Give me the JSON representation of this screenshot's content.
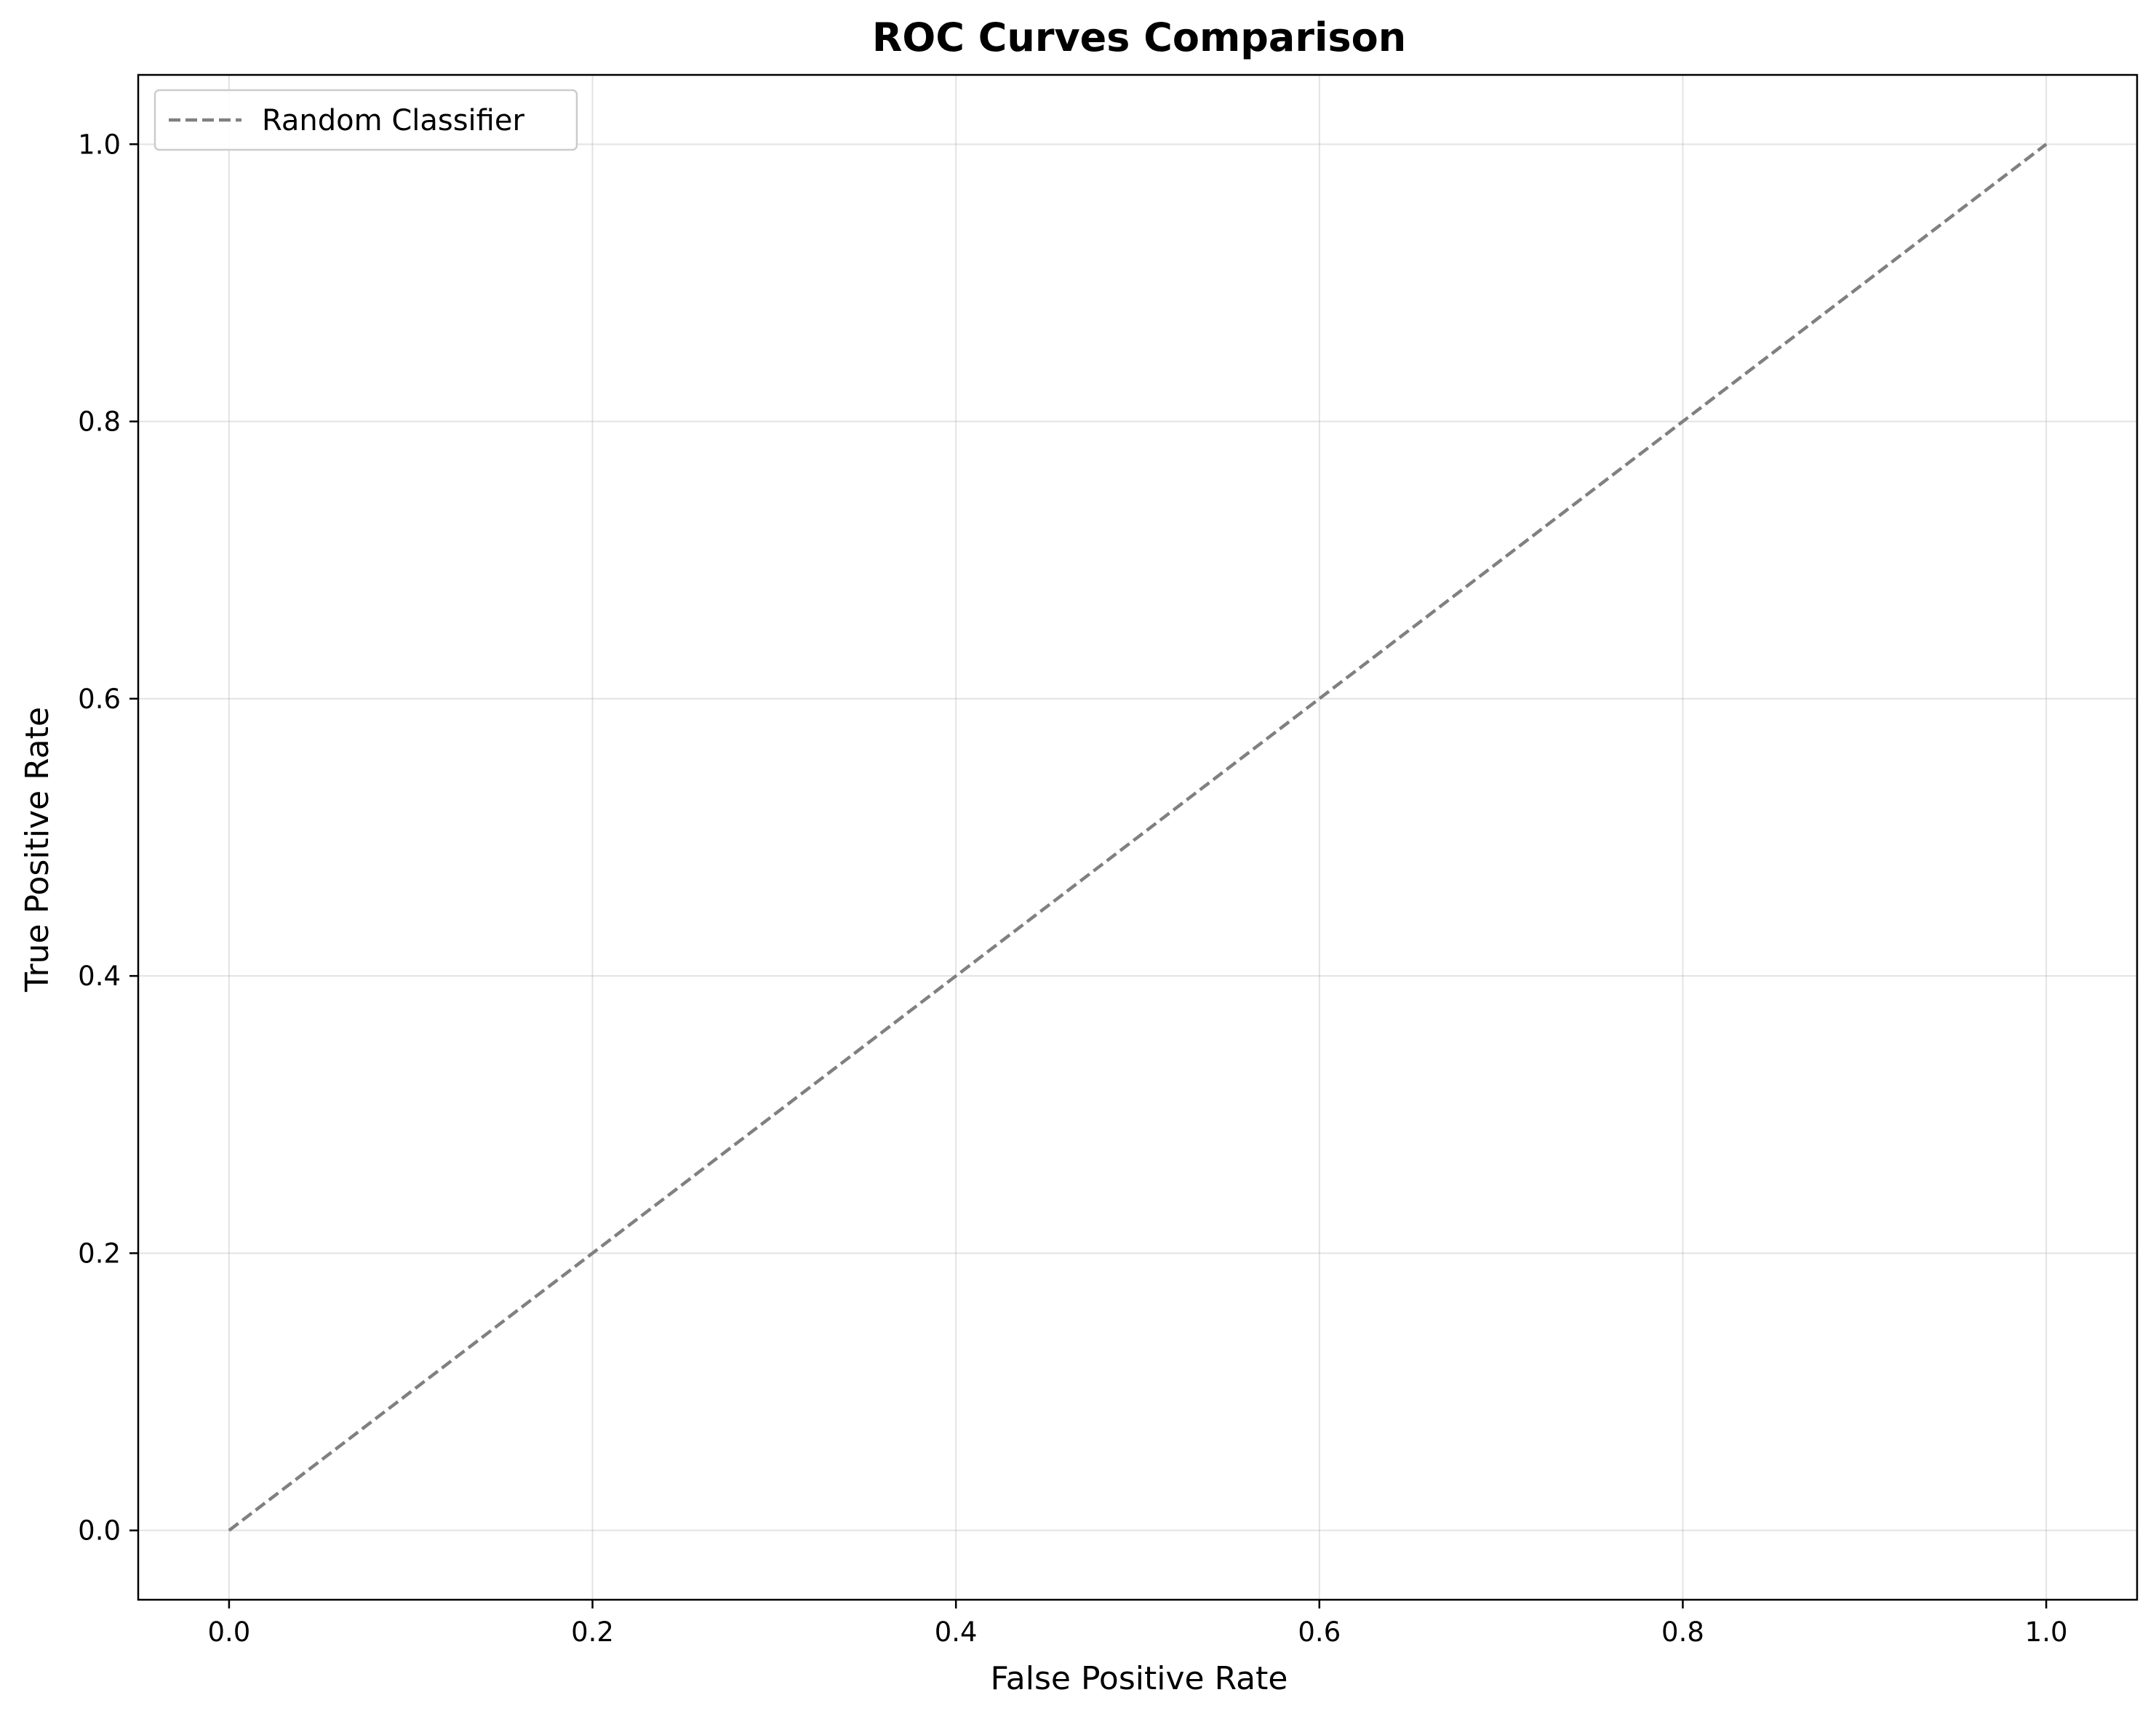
{
  "chart_data": {
    "type": "line",
    "title": "ROC Curves Comparison",
    "xlabel": "False Positive Rate",
    "ylabel": "True Positive Rate",
    "xlim": [
      -0.05,
      1.05
    ],
    "ylim": [
      -0.05,
      1.05
    ],
    "xticks": [
      0.0,
      0.2,
      0.4,
      0.6,
      0.8,
      1.0
    ],
    "yticks": [
      0.0,
      0.2,
      0.4,
      0.6,
      0.8,
      1.0
    ],
    "tick_labels_x": [
      "0.0",
      "0.2",
      "0.4",
      "0.6",
      "0.8",
      "1.0"
    ],
    "tick_labels_y": [
      "0.0",
      "0.2",
      "0.4",
      "0.6",
      "0.8",
      "1.0"
    ],
    "grid": true,
    "legend_placement": "upper-left",
    "series": [
      {
        "name": "Random Classifier",
        "x": [
          0.0,
          1.0
        ],
        "y": [
          0.0,
          1.0
        ],
        "color": "#808080",
        "style": "dashed"
      }
    ]
  }
}
